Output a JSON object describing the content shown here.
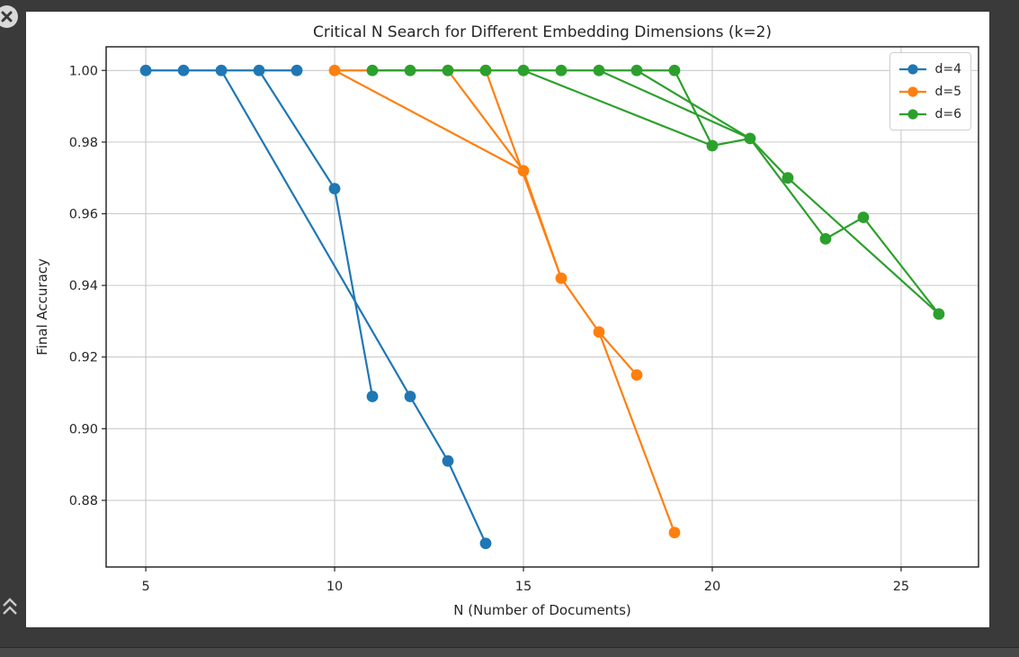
{
  "window": {
    "background_color": "#3a3a3a",
    "close_icon": "circle-x",
    "collapse_icon": "double-chevron-up"
  },
  "chart_data": {
    "type": "line",
    "title": "Critical N Search for Different Embedding Dimensions (k=2)",
    "xlabel": "N (Number of Documents)",
    "ylabel": "Final Accuracy",
    "xlim": [
      3.95,
      27.05
    ],
    "ylim": [
      0.8614,
      1.0066
    ],
    "xticks": [
      5,
      10,
      15,
      20,
      25
    ],
    "xtick_labels": [
      "5",
      "10",
      "15",
      "20",
      "25"
    ],
    "yticks": [
      0.88,
      0.9,
      0.92,
      0.94,
      0.96,
      0.98,
      1.0
    ],
    "ytick_labels": [
      "0.88",
      "0.90",
      "0.92",
      "0.94",
      "0.96",
      "0.98",
      "1.00"
    ],
    "grid": true,
    "grid_color": "#c9c9c9",
    "spine_color": "#1b1b1b",
    "legend_position": "upper right",
    "series": [
      {
        "name": "d=4",
        "color": "#1f77b4",
        "points": [
          [
            5,
            1.0
          ],
          [
            6,
            1.0
          ],
          [
            7,
            1.0
          ],
          [
            8,
            1.0
          ],
          [
            9,
            1.0
          ],
          [
            10,
            0.967
          ],
          [
            11,
            0.909
          ],
          [
            12,
            0.909
          ],
          [
            13,
            0.891
          ],
          [
            14,
            0.868
          ]
        ],
        "polylines": [
          [
            [
              5,
              1.0
            ],
            [
              6,
              1.0
            ],
            [
              7,
              1.0
            ],
            [
              8,
              1.0
            ],
            [
              9,
              1.0
            ]
          ],
          [
            [
              7,
              1.0
            ],
            [
              12,
              0.909
            ],
            [
              13,
              0.891
            ],
            [
              14,
              0.868
            ]
          ],
          [
            [
              8,
              1.0
            ],
            [
              10,
              0.967
            ],
            [
              11,
              0.909
            ]
          ]
        ]
      },
      {
        "name": "d=5",
        "color": "#ff7f0e",
        "points": [
          [
            10,
            1.0
          ],
          [
            13,
            1.0
          ],
          [
            14,
            1.0
          ],
          [
            15,
            0.972
          ],
          [
            16,
            0.942
          ],
          [
            17,
            0.927
          ],
          [
            18,
            0.915
          ],
          [
            19,
            0.871
          ]
        ],
        "polylines": [
          [
            [
              10,
              1.0
            ],
            [
              13,
              1.0
            ],
            [
              14,
              1.0
            ]
          ],
          [
            [
              10,
              1.0
            ],
            [
              15,
              0.972
            ]
          ],
          [
            [
              13,
              1.0
            ],
            [
              15,
              0.972
            ]
          ],
          [
            [
              14,
              1.0
            ],
            [
              16,
              0.942
            ]
          ],
          [
            [
              15,
              0.972
            ],
            [
              16,
              0.942
            ],
            [
              17,
              0.927
            ],
            [
              18,
              0.915
            ]
          ],
          [
            [
              17,
              0.927
            ],
            [
              19,
              0.871
            ]
          ]
        ]
      },
      {
        "name": "d=6",
        "color": "#2ca02c",
        "points": [
          [
            11,
            1.0
          ],
          [
            12,
            1.0
          ],
          [
            13,
            1.0
          ],
          [
            14,
            1.0
          ],
          [
            15,
            1.0
          ],
          [
            16,
            1.0
          ],
          [
            17,
            1.0
          ],
          [
            18,
            1.0
          ],
          [
            19,
            1.0
          ],
          [
            20,
            0.979
          ],
          [
            21,
            0.981
          ],
          [
            22,
            0.97
          ],
          [
            23,
            0.953
          ],
          [
            24,
            0.959
          ],
          [
            26,
            0.932
          ]
        ],
        "polylines": [
          [
            [
              11,
              1.0
            ],
            [
              12,
              1.0
            ],
            [
              13,
              1.0
            ],
            [
              14,
              1.0
            ],
            [
              15,
              1.0
            ],
            [
              16,
              1.0
            ],
            [
              17,
              1.0
            ],
            [
              18,
              1.0
            ],
            [
              19,
              1.0
            ]
          ],
          [
            [
              15,
              1.0
            ],
            [
              20,
              0.979
            ]
          ],
          [
            [
              17,
              1.0
            ],
            [
              21,
              0.981
            ]
          ],
          [
            [
              18,
              1.0
            ],
            [
              21,
              0.981
            ]
          ],
          [
            [
              19,
              1.0
            ],
            [
              20,
              0.979
            ]
          ],
          [
            [
              20,
              0.979
            ],
            [
              21,
              0.981
            ],
            [
              22,
              0.97
            ]
          ],
          [
            [
              21,
              0.981
            ],
            [
              23,
              0.953
            ],
            [
              24,
              0.959
            ],
            [
              26,
              0.932
            ]
          ],
          [
            [
              22,
              0.97
            ],
            [
              26,
              0.932
            ]
          ]
        ]
      }
    ]
  }
}
